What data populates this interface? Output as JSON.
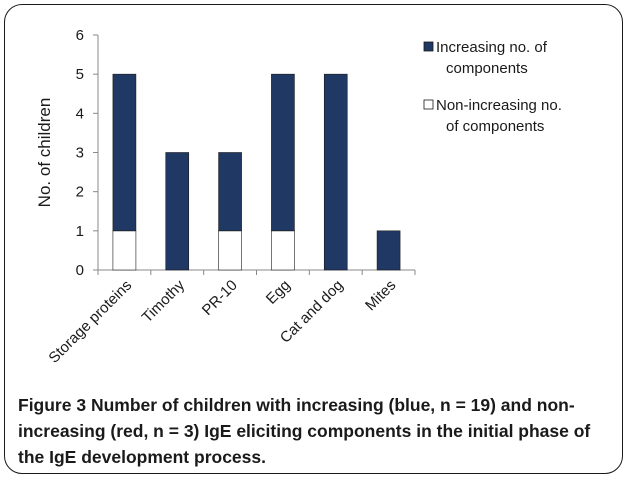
{
  "chart_data": {
    "type": "bar",
    "stacked": true,
    "categories": [
      "Storage proteins",
      "Timothy",
      "PR-10",
      "Egg",
      "Cat and dog",
      "Mites"
    ],
    "series": [
      {
        "name": "Non-increasing no. of components",
        "values": [
          1,
          0,
          1,
          1,
          0,
          0
        ],
        "color": "#ffffff"
      },
      {
        "name": "Increasing no. of components",
        "values": [
          4,
          3,
          2,
          4,
          5,
          1
        ],
        "color": "#1f3864"
      }
    ],
    "legend_lines": [
      [
        "Increasing no. of",
        "components"
      ],
      [
        "Non-increasing no.",
        "of components"
      ]
    ],
    "ylabel": "No. of children",
    "yticks": [
      "0",
      "1",
      "2",
      "3",
      "4",
      "5",
      "6"
    ],
    "ylim": [
      0,
      6
    ],
    "grid": false,
    "legend_position": "right"
  },
  "caption": {
    "label": "Figure 3",
    "text": "Number of children with increasing (blue, n = 19) and non-increasing (red, n = 3) IgE eliciting components in the initial phase of the IgE development process."
  }
}
